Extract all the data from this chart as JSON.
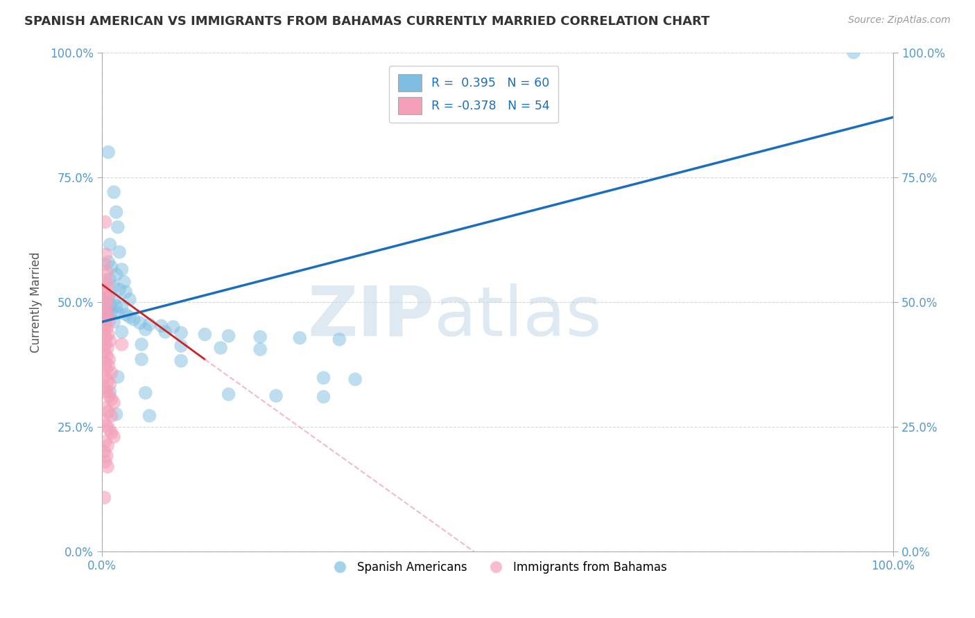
{
  "title": "SPANISH AMERICAN VS IMMIGRANTS FROM BAHAMAS CURRENTLY MARRIED CORRELATION CHART",
  "source": "Source: ZipAtlas.com",
  "ylabel": "Currently Married",
  "xlim": [
    0.0,
    1.0
  ],
  "ylim": [
    0.0,
    1.0
  ],
  "ytick_positions": [
    0.0,
    0.25,
    0.5,
    0.75,
    1.0
  ],
  "ytick_labels": [
    "0.0%",
    "25.0%",
    "50.0%",
    "75.0%",
    "100.0%"
  ],
  "xtick_positions": [
    0.0,
    1.0
  ],
  "xtick_labels": [
    "0.0%",
    "100.0%"
  ],
  "blue_line": [
    0.0,
    0.46,
    1.0,
    0.87
  ],
  "pink_line_solid": [
    0.0,
    0.535,
    0.13,
    0.385
  ],
  "pink_line_dash": [
    0.13,
    0.385,
    1.0,
    -0.6
  ],
  "blue_color": "#7fbee0",
  "pink_color": "#f4a0b8",
  "blue_line_color": "#1a6ebd",
  "pink_solid_color": "#cc2222",
  "pink_dash_color": "#f4a0b8",
  "watermark_zip": "ZIP",
  "watermark_atlas": "atlas",
  "background_color": "#ffffff",
  "grid_color": "#cccccc",
  "legend_r1": "R =  0.395   N = 60",
  "legend_r2": "R = -0.378   N = 54",
  "legend_label1": "Spanish Americans",
  "legend_label2": "Immigrants from Bahamas",
  "blue_scatter": [
    [
      0.008,
      0.8
    ],
    [
      0.015,
      0.72
    ],
    [
      0.018,
      0.68
    ],
    [
      0.02,
      0.65
    ],
    [
      0.01,
      0.615
    ],
    [
      0.022,
      0.6
    ],
    [
      0.008,
      0.58
    ],
    [
      0.012,
      0.57
    ],
    [
      0.025,
      0.565
    ],
    [
      0.018,
      0.555
    ],
    [
      0.01,
      0.545
    ],
    [
      0.028,
      0.54
    ],
    [
      0.014,
      0.53
    ],
    [
      0.022,
      0.525
    ],
    [
      0.03,
      0.52
    ],
    [
      0.008,
      0.51
    ],
    [
      0.015,
      0.505
    ],
    [
      0.035,
      0.505
    ],
    [
      0.005,
      0.498
    ],
    [
      0.01,
      0.495
    ],
    [
      0.018,
      0.492
    ],
    [
      0.025,
      0.49
    ],
    [
      0.008,
      0.485
    ],
    [
      0.012,
      0.48
    ],
    [
      0.02,
      0.478
    ],
    [
      0.03,
      0.475
    ],
    [
      0.035,
      0.47
    ],
    [
      0.005,
      0.465
    ],
    [
      0.04,
      0.465
    ],
    [
      0.015,
      0.46
    ],
    [
      0.048,
      0.458
    ],
    [
      0.06,
      0.455
    ],
    [
      0.075,
      0.452
    ],
    [
      0.09,
      0.45
    ],
    [
      0.055,
      0.445
    ],
    [
      0.025,
      0.44
    ],
    [
      0.08,
      0.44
    ],
    [
      0.1,
      0.438
    ],
    [
      0.13,
      0.435
    ],
    [
      0.16,
      0.432
    ],
    [
      0.2,
      0.43
    ],
    [
      0.25,
      0.428
    ],
    [
      0.3,
      0.425
    ],
    [
      0.05,
      0.415
    ],
    [
      0.1,
      0.412
    ],
    [
      0.15,
      0.408
    ],
    [
      0.2,
      0.405
    ],
    [
      0.05,
      0.385
    ],
    [
      0.1,
      0.382
    ],
    [
      0.02,
      0.35
    ],
    [
      0.28,
      0.348
    ],
    [
      0.32,
      0.345
    ],
    [
      0.01,
      0.32
    ],
    [
      0.055,
      0.318
    ],
    [
      0.16,
      0.315
    ],
    [
      0.22,
      0.312
    ],
    [
      0.28,
      0.31
    ],
    [
      0.018,
      0.275
    ],
    [
      0.06,
      0.272
    ],
    [
      0.95,
      1.0
    ]
  ],
  "pink_scatter": [
    [
      0.004,
      0.66
    ],
    [
      0.005,
      0.595
    ],
    [
      0.003,
      0.575
    ],
    [
      0.006,
      0.56
    ],
    [
      0.004,
      0.545
    ],
    [
      0.007,
      0.535
    ],
    [
      0.003,
      0.525
    ],
    [
      0.005,
      0.515
    ],
    [
      0.008,
      0.51
    ],
    [
      0.004,
      0.5
    ],
    [
      0.006,
      0.492
    ],
    [
      0.003,
      0.482
    ],
    [
      0.007,
      0.475
    ],
    [
      0.005,
      0.468
    ],
    [
      0.009,
      0.462
    ],
    [
      0.004,
      0.455
    ],
    [
      0.006,
      0.448
    ],
    [
      0.003,
      0.44
    ],
    [
      0.008,
      0.435
    ],
    [
      0.005,
      0.428
    ],
    [
      0.01,
      0.422
    ],
    [
      0.004,
      0.415
    ],
    [
      0.007,
      0.408
    ],
    [
      0.003,
      0.4
    ],
    [
      0.006,
      0.392
    ],
    [
      0.009,
      0.385
    ],
    [
      0.004,
      0.378
    ],
    [
      0.008,
      0.372
    ],
    [
      0.005,
      0.365
    ],
    [
      0.012,
      0.358
    ],
    [
      0.004,
      0.35
    ],
    [
      0.007,
      0.342
    ],
    [
      0.01,
      0.335
    ],
    [
      0.003,
      0.328
    ],
    [
      0.006,
      0.32
    ],
    [
      0.009,
      0.312
    ],
    [
      0.012,
      0.305
    ],
    [
      0.015,
      0.298
    ],
    [
      0.004,
      0.288
    ],
    [
      0.008,
      0.28
    ],
    [
      0.012,
      0.272
    ],
    [
      0.003,
      0.262
    ],
    [
      0.006,
      0.252
    ],
    [
      0.009,
      0.245
    ],
    [
      0.012,
      0.238
    ],
    [
      0.015,
      0.23
    ],
    [
      0.004,
      0.22
    ],
    [
      0.007,
      0.212
    ],
    [
      0.003,
      0.2
    ],
    [
      0.006,
      0.192
    ],
    [
      0.004,
      0.18
    ],
    [
      0.007,
      0.17
    ],
    [
      0.003,
      0.108
    ],
    [
      0.025,
      0.415
    ]
  ]
}
